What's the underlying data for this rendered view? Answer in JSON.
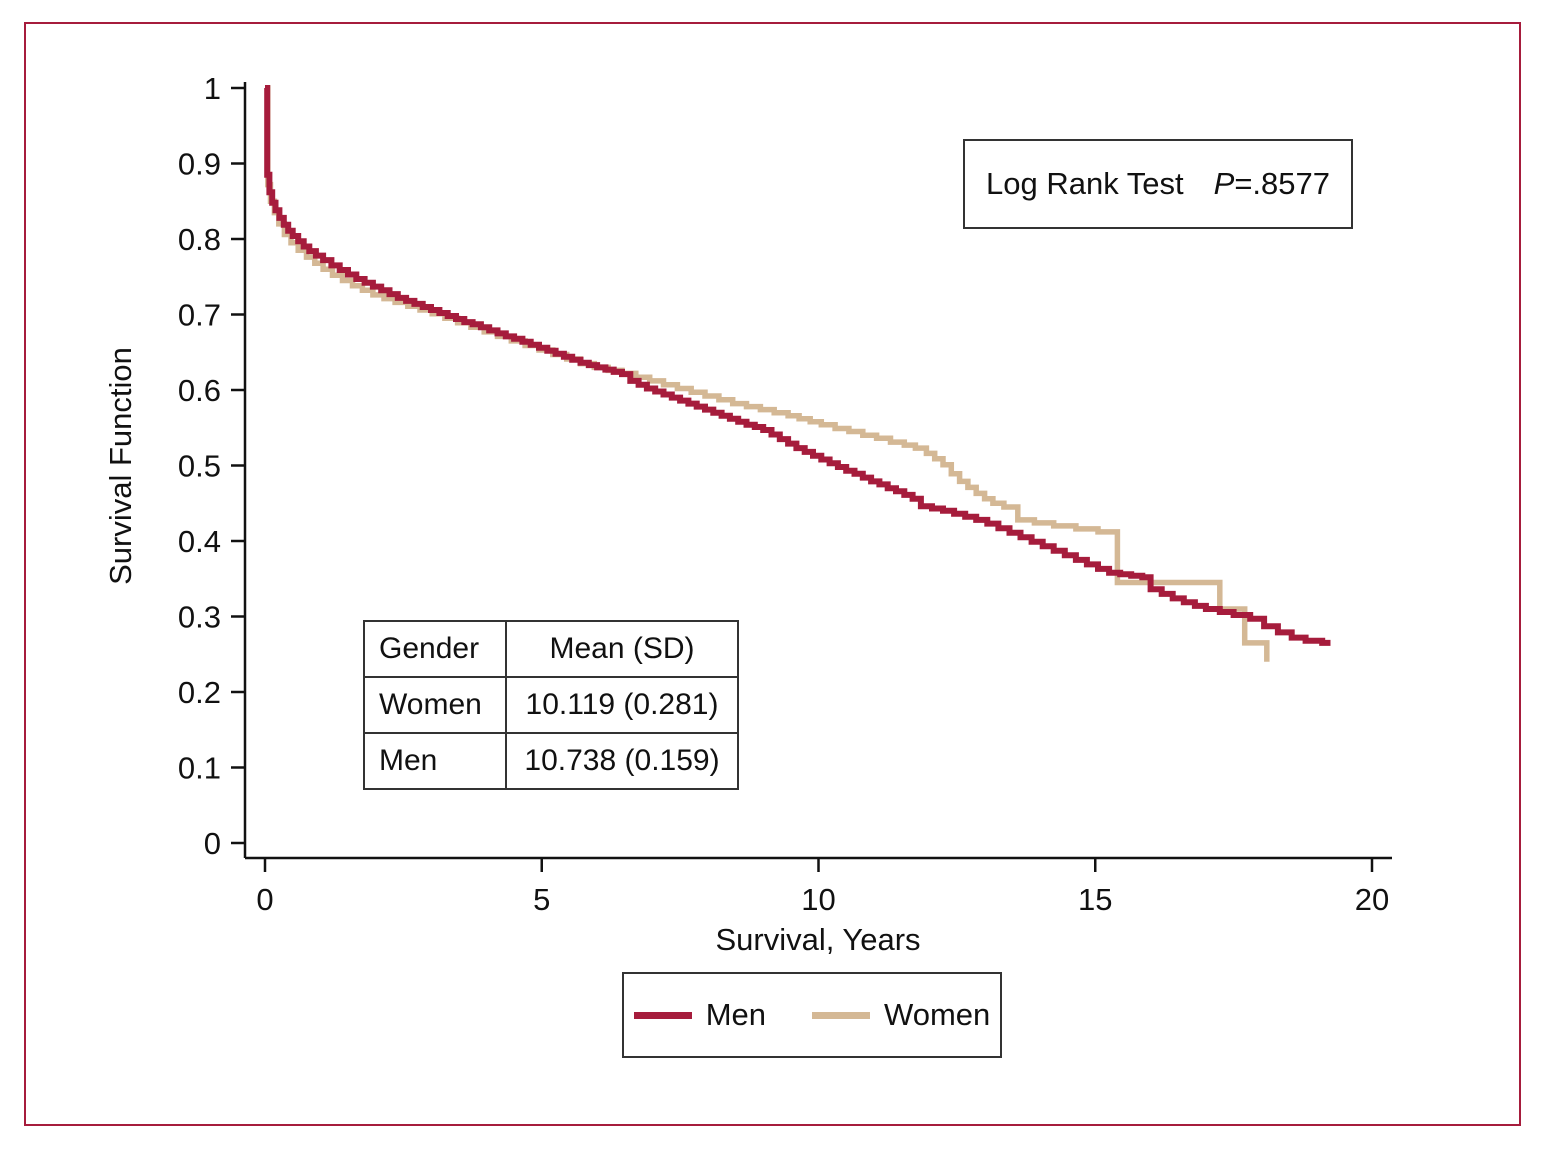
{
  "figure": {
    "border_color": "#A61C3C",
    "background": "#ffffff",
    "axis_color": "#111111"
  },
  "annotation": {
    "prefix": "Log Rank Test",
    "p_label": "P",
    "p_value": "=.8577"
  },
  "stats_table": {
    "headers": [
      "Gender",
      "Mean (SD)"
    ],
    "rows": [
      [
        "Women",
        "10.119 (0.281)"
      ],
      [
        "Men",
        "10.738 (0.159)"
      ]
    ]
  },
  "legend": {
    "items": [
      {
        "label": "Men",
        "color": "#A61C3C"
      },
      {
        "label": "Women",
        "color": "#D4B895"
      }
    ]
  },
  "chart_data": {
    "type": "line",
    "subtype": "kaplan-meier-step",
    "title": "",
    "xlabel": "Survival, Years",
    "ylabel": "Survival Function",
    "xlim": [
      0,
      20
    ],
    "ylim": [
      0,
      1
    ],
    "grid": false,
    "legend_position": "bottom-center",
    "xtick_values": [
      0,
      5,
      10,
      15,
      20
    ],
    "xtick_labels": [
      "0",
      "5",
      "10",
      "15",
      "20"
    ],
    "ytick_values": [
      0,
      0.1,
      0.2,
      0.3,
      0.4,
      0.5,
      0.6,
      0.7,
      0.8,
      0.9,
      1
    ],
    "ytick_labels": [
      "0",
      "0.1",
      "0.2",
      "0.3",
      "0.4",
      "0.5",
      "0.6",
      "0.7",
      "0.8",
      "0.9",
      "1"
    ],
    "annotation": "Log Rank Test P=.8577",
    "series": [
      {
        "name": "Women",
        "color": "#D4B895",
        "stroke_width": 5.5,
        "points": [
          [
            0,
            1.0
          ],
          [
            0.05,
            0.872
          ],
          [
            0.1,
            0.85
          ],
          [
            0.17,
            0.835
          ],
          [
            0.25,
            0.82
          ],
          [
            0.35,
            0.806
          ],
          [
            0.47,
            0.795
          ],
          [
            0.6,
            0.785
          ],
          [
            0.75,
            0.776
          ],
          [
            0.9,
            0.768
          ],
          [
            1.05,
            0.76
          ],
          [
            1.22,
            0.752
          ],
          [
            1.4,
            0.745
          ],
          [
            1.58,
            0.738
          ],
          [
            1.76,
            0.732
          ],
          [
            1.95,
            0.726
          ],
          [
            2.15,
            0.721
          ],
          [
            2.35,
            0.716
          ],
          [
            2.58,
            0.711
          ],
          [
            2.8,
            0.706
          ],
          [
            3.02,
            0.701
          ],
          [
            3.25,
            0.695
          ],
          [
            3.48,
            0.689
          ],
          [
            3.72,
            0.683
          ],
          [
            3.96,
            0.677
          ],
          [
            4.2,
            0.671
          ],
          [
            4.45,
            0.665
          ],
          [
            4.7,
            0.659
          ],
          [
            4.95,
            0.653
          ],
          [
            5.2,
            0.647
          ],
          [
            5.45,
            0.641
          ],
          [
            5.7,
            0.635
          ],
          [
            5.95,
            0.63
          ],
          [
            6.2,
            0.626
          ],
          [
            6.45,
            0.622
          ],
          [
            6.7,
            0.617
          ],
          [
            6.95,
            0.612
          ],
          [
            7.2,
            0.607
          ],
          [
            7.45,
            0.602
          ],
          [
            7.7,
            0.597
          ],
          [
            7.95,
            0.592
          ],
          [
            8.2,
            0.587
          ],
          [
            8.45,
            0.582
          ],
          [
            8.7,
            0.578
          ],
          [
            8.95,
            0.574
          ],
          [
            9.2,
            0.57
          ],
          [
            9.45,
            0.566
          ],
          [
            9.65,
            0.562
          ],
          [
            9.85,
            0.558
          ],
          [
            10.05,
            0.554
          ],
          [
            10.3,
            0.549
          ],
          [
            10.55,
            0.545
          ],
          [
            10.8,
            0.54
          ],
          [
            11.05,
            0.536
          ],
          [
            11.3,
            0.531
          ],
          [
            11.55,
            0.527
          ],
          [
            11.75,
            0.523
          ],
          [
            11.95,
            0.516
          ],
          [
            12.1,
            0.509
          ],
          [
            12.25,
            0.501
          ],
          [
            12.4,
            0.489
          ],
          [
            12.55,
            0.479
          ],
          [
            12.7,
            0.471
          ],
          [
            12.85,
            0.463
          ],
          [
            13.0,
            0.456
          ],
          [
            13.15,
            0.45
          ],
          [
            13.35,
            0.445
          ],
          [
            13.6,
            0.428
          ],
          [
            13.9,
            0.424
          ],
          [
            14.25,
            0.42
          ],
          [
            14.65,
            0.416
          ],
          [
            15.05,
            0.412
          ],
          [
            15.4,
            0.345
          ],
          [
            17.25,
            0.31
          ],
          [
            17.7,
            0.265
          ],
          [
            18.1,
            0.24
          ]
        ]
      },
      {
        "name": "Men",
        "color": "#A61C3C",
        "stroke_width": 6,
        "points": [
          [
            0,
            1.0
          ],
          [
            0.04,
            0.885
          ],
          [
            0.08,
            0.862
          ],
          [
            0.13,
            0.848
          ],
          [
            0.19,
            0.838
          ],
          [
            0.26,
            0.828
          ],
          [
            0.34,
            0.819
          ],
          [
            0.42,
            0.811
          ],
          [
            0.5,
            0.804
          ],
          [
            0.6,
            0.797
          ],
          [
            0.7,
            0.79
          ],
          [
            0.8,
            0.784
          ],
          [
            0.92,
            0.778
          ],
          [
            1.05,
            0.772
          ],
          [
            1.2,
            0.765
          ],
          [
            1.35,
            0.759
          ],
          [
            1.5,
            0.753
          ],
          [
            1.65,
            0.747
          ],
          [
            1.8,
            0.742
          ],
          [
            1.95,
            0.737
          ],
          [
            2.1,
            0.732
          ],
          [
            2.25,
            0.727
          ],
          [
            2.4,
            0.722
          ],
          [
            2.55,
            0.718
          ],
          [
            2.7,
            0.714
          ],
          [
            2.85,
            0.71
          ],
          [
            3.0,
            0.706
          ],
          [
            3.15,
            0.702
          ],
          [
            3.3,
            0.698
          ],
          [
            3.45,
            0.694
          ],
          [
            3.6,
            0.69
          ],
          [
            3.75,
            0.687
          ],
          [
            3.9,
            0.683
          ],
          [
            4.05,
            0.679
          ],
          [
            4.2,
            0.675
          ],
          [
            4.35,
            0.671
          ],
          [
            4.5,
            0.668
          ],
          [
            4.65,
            0.664
          ],
          [
            4.8,
            0.66
          ],
          [
            4.95,
            0.656
          ],
          [
            5.1,
            0.652
          ],
          [
            5.25,
            0.648
          ],
          [
            5.4,
            0.644
          ],
          [
            5.55,
            0.64
          ],
          [
            5.7,
            0.636
          ],
          [
            5.85,
            0.633
          ],
          [
            6.0,
            0.63
          ],
          [
            6.15,
            0.627
          ],
          [
            6.3,
            0.624
          ],
          [
            6.45,
            0.621
          ],
          [
            6.6,
            0.612
          ],
          [
            6.75,
            0.607
          ],
          [
            6.9,
            0.602
          ],
          [
            7.05,
            0.598
          ],
          [
            7.2,
            0.594
          ],
          [
            7.35,
            0.59
          ],
          [
            7.5,
            0.586
          ],
          [
            7.65,
            0.582
          ],
          [
            7.8,
            0.578
          ],
          [
            7.95,
            0.574
          ],
          [
            8.1,
            0.57
          ],
          [
            8.25,
            0.566
          ],
          [
            8.4,
            0.562
          ],
          [
            8.55,
            0.558
          ],
          [
            8.7,
            0.554
          ],
          [
            8.85,
            0.551
          ],
          [
            9.0,
            0.547
          ],
          [
            9.15,
            0.541
          ],
          [
            9.3,
            0.535
          ],
          [
            9.45,
            0.529
          ],
          [
            9.6,
            0.523
          ],
          [
            9.75,
            0.518
          ],
          [
            9.9,
            0.513
          ],
          [
            10.05,
            0.508
          ],
          [
            10.2,
            0.503
          ],
          [
            10.35,
            0.498
          ],
          [
            10.5,
            0.493
          ],
          [
            10.65,
            0.489
          ],
          [
            10.8,
            0.484
          ],
          [
            10.95,
            0.479
          ],
          [
            11.1,
            0.475
          ],
          [
            11.25,
            0.47
          ],
          [
            11.4,
            0.466
          ],
          [
            11.55,
            0.461
          ],
          [
            11.7,
            0.456
          ],
          [
            11.85,
            0.446
          ],
          [
            12.05,
            0.443
          ],
          [
            12.25,
            0.44
          ],
          [
            12.45,
            0.436
          ],
          [
            12.65,
            0.432
          ],
          [
            12.85,
            0.428
          ],
          [
            13.05,
            0.423
          ],
          [
            13.25,
            0.417
          ],
          [
            13.45,
            0.411
          ],
          [
            13.65,
            0.405
          ],
          [
            13.85,
            0.399
          ],
          [
            14.05,
            0.393
          ],
          [
            14.25,
            0.387
          ],
          [
            14.45,
            0.381
          ],
          [
            14.65,
            0.375
          ],
          [
            14.85,
            0.369
          ],
          [
            15.05,
            0.363
          ],
          [
            15.25,
            0.358
          ],
          [
            15.45,
            0.356
          ],
          [
            15.65,
            0.354
          ],
          [
            15.85,
            0.352
          ],
          [
            16.0,
            0.336
          ],
          [
            16.2,
            0.33
          ],
          [
            16.4,
            0.324
          ],
          [
            16.6,
            0.319
          ],
          [
            16.8,
            0.314
          ],
          [
            17.0,
            0.31
          ],
          [
            17.25,
            0.306
          ],
          [
            17.5,
            0.302
          ],
          [
            17.8,
            0.297
          ],
          [
            18.05,
            0.287
          ],
          [
            18.3,
            0.279
          ],
          [
            18.55,
            0.272
          ],
          [
            18.8,
            0.268
          ],
          [
            19.1,
            0.265
          ],
          [
            19.25,
            0.265
          ]
        ]
      }
    ]
  }
}
